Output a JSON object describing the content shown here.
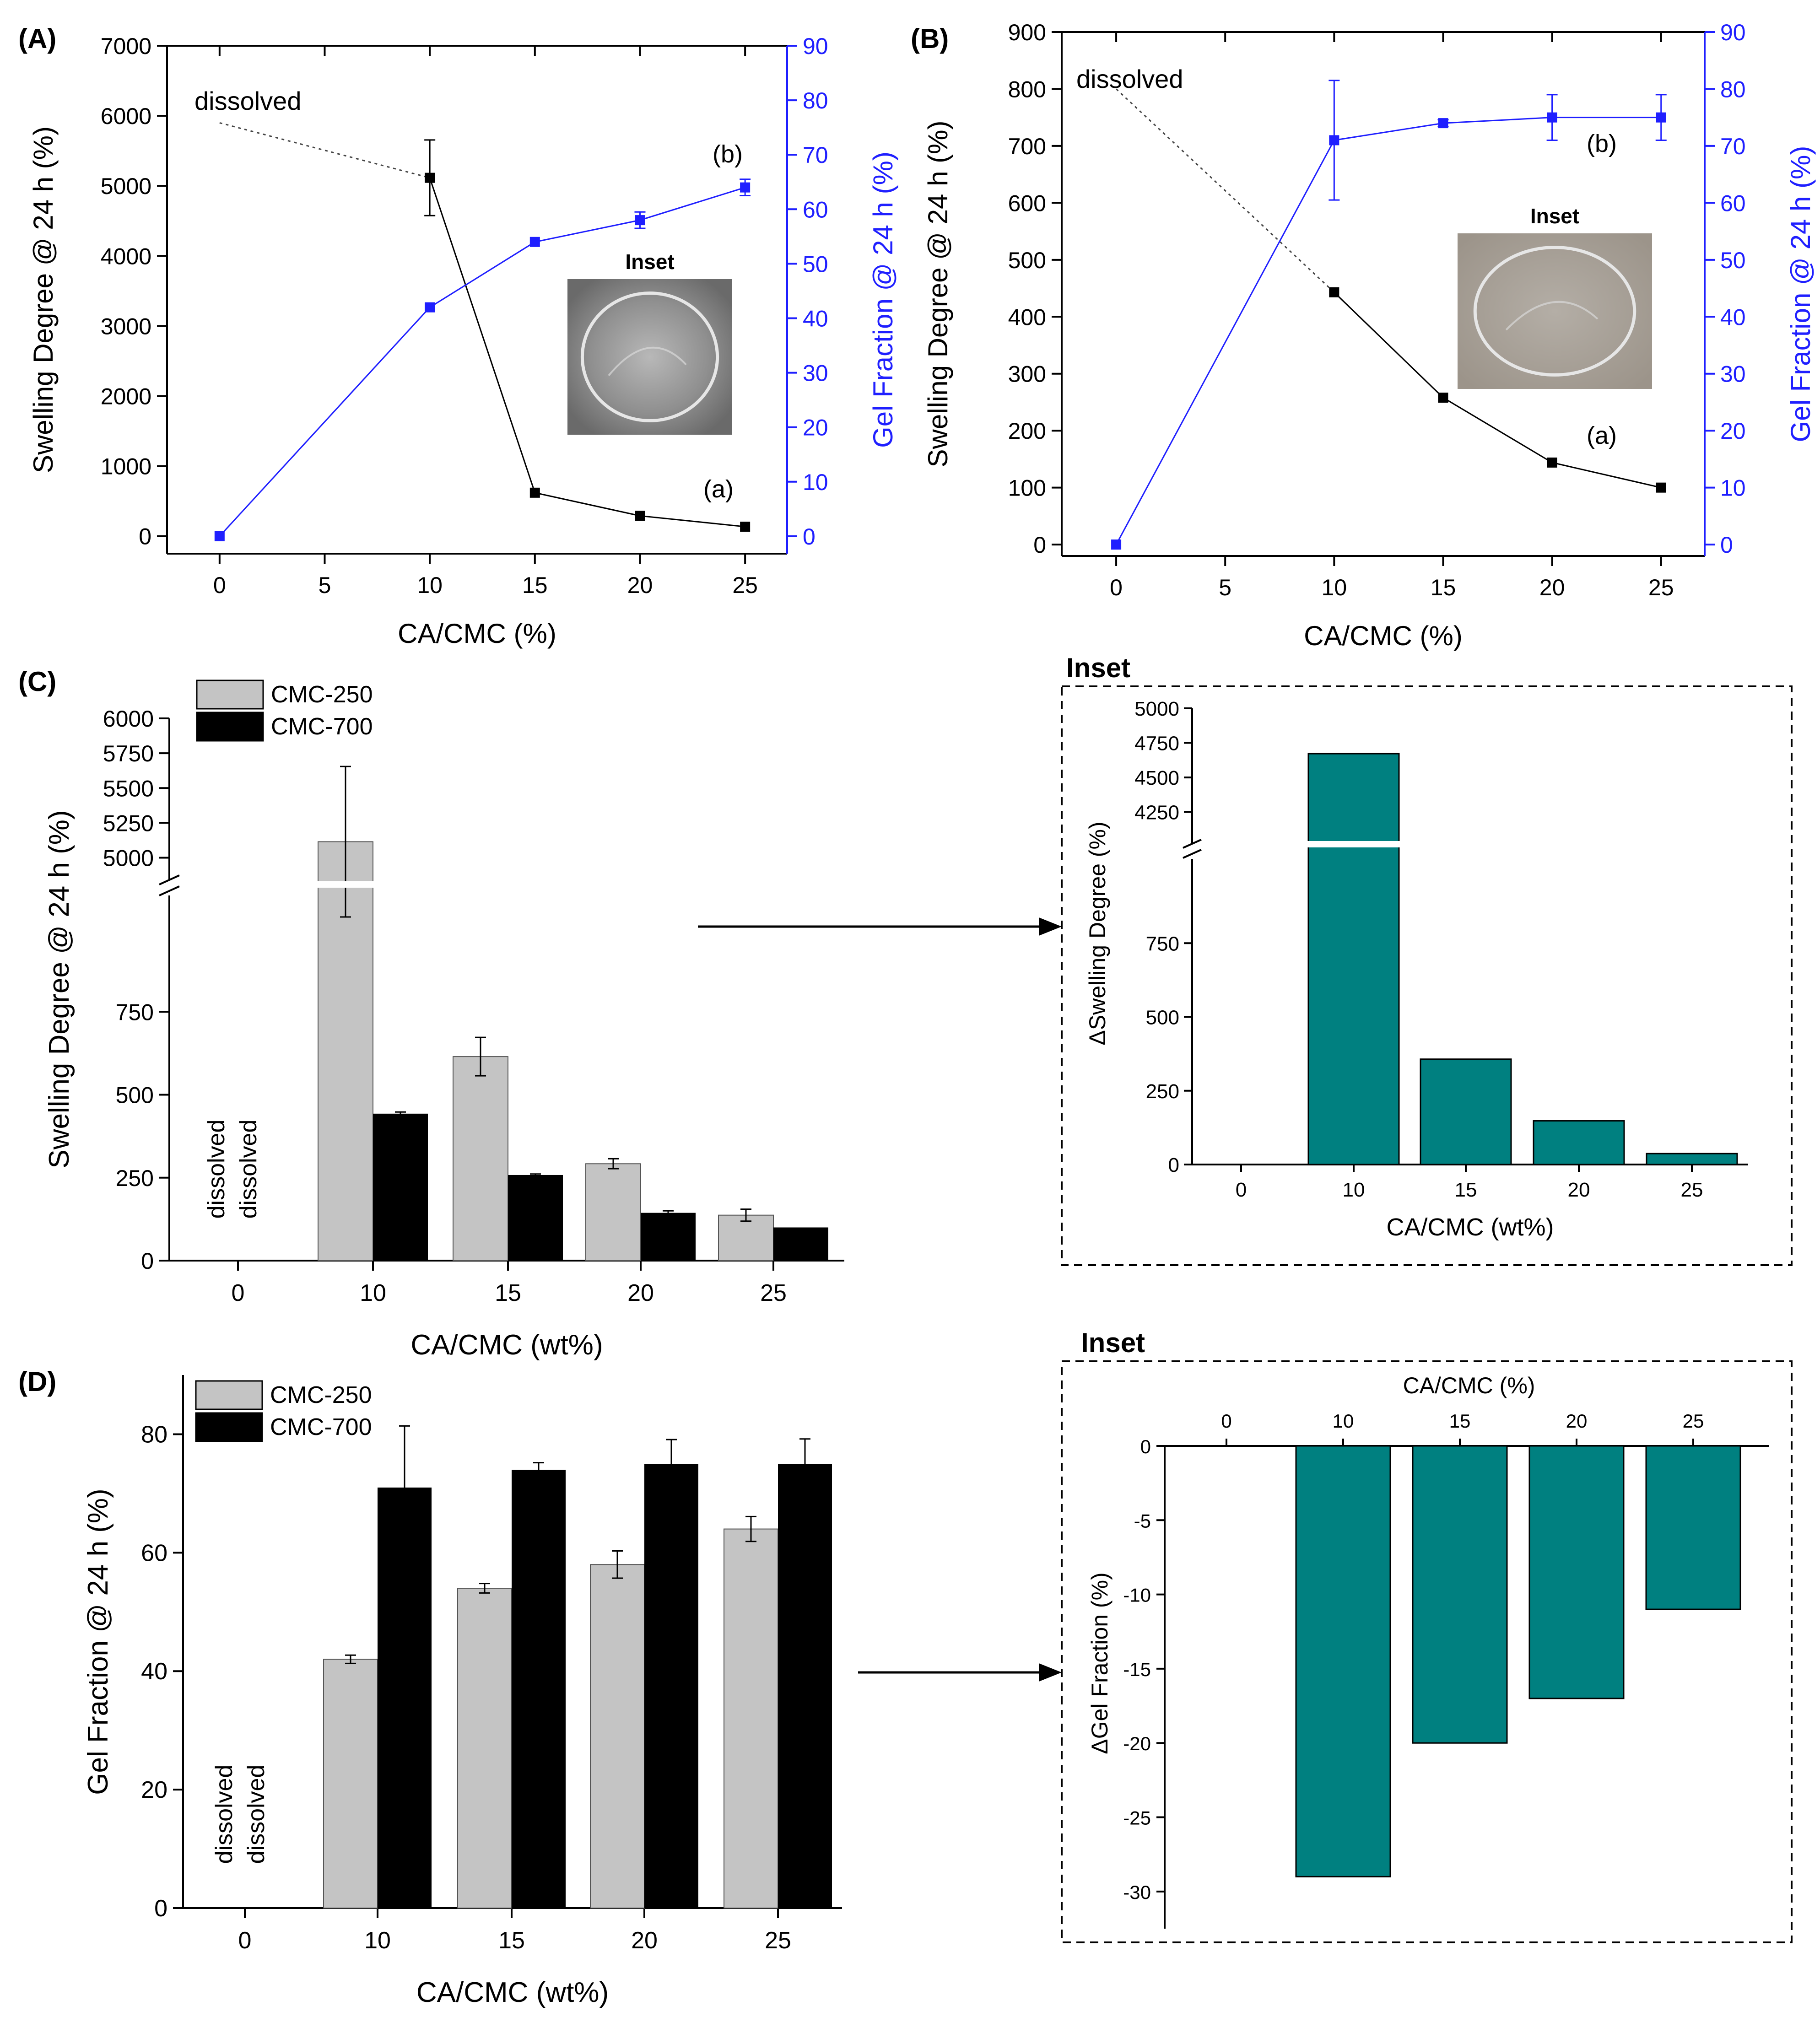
{
  "colors": {
    "black": "#000000",
    "blue": "#1f1fff",
    "gray_bar": "#c4c4c4",
    "teal": "#008080",
    "dotted": "#444444",
    "photo_a": "#8a8a8a",
    "photo_b": "#a49d94"
  },
  "chart_data": [
    {
      "id": "A",
      "type": "line",
      "panel_label": "(A)",
      "xlabel": "CA/CMC (%)",
      "ylabel_left": "Swelling Degree @ 24 h (%)",
      "ylabel_right": "Gel Fraction @ 24 h (%)",
      "x": [
        0,
        10,
        15,
        20,
        25
      ],
      "xticks": [
        0,
        5,
        10,
        15,
        20,
        25
      ],
      "xlim": [
        -2.5,
        27
      ],
      "ylim_left": [
        -250,
        7000
      ],
      "yticks_left": [
        0,
        1000,
        2000,
        3000,
        4000,
        5000,
        6000,
        7000
      ],
      "ylim_right": [
        -3.2,
        90
      ],
      "yticks_right": [
        0,
        10,
        20,
        30,
        40,
        50,
        60,
        70,
        80,
        90
      ],
      "series": [
        {
          "name": "(a)",
          "axis": "left",
          "color": "#000000",
          "x": [
            10,
            15,
            20,
            25
          ],
          "values": [
            5115,
            620,
            290,
            135
          ],
          "errors": [
            540,
            0,
            0,
            0
          ]
        },
        {
          "name": "(b)",
          "axis": "right",
          "color": "#1f1fff",
          "x": [
            0,
            10,
            15,
            20,
            25
          ],
          "values": [
            0,
            42,
            54,
            58,
            64
          ],
          "errors": [
            0,
            0,
            0,
            1.5,
            1.5
          ]
        }
      ],
      "annotations": {
        "dissolved": "dissolved",
        "series_a": "(a)",
        "series_b": "(b)",
        "inset": "Inset"
      }
    },
    {
      "id": "B",
      "type": "line",
      "panel_label": "(B)",
      "xlabel": "CA/CMC (%)",
      "ylabel_left": "Swelling Degree @ 24 h (%)",
      "ylabel_right": "Gel Fraction @ 24 h (%)",
      "x": [
        0,
        10,
        15,
        20,
        25
      ],
      "xticks": [
        0,
        5,
        10,
        15,
        20,
        25
      ],
      "xlim": [
        -2.5,
        27
      ],
      "ylim_left": [
        -20,
        900
      ],
      "yticks_left": [
        0,
        100,
        200,
        300,
        400,
        500,
        600,
        700,
        800,
        900
      ],
      "ylim_right": [
        -2,
        90
      ],
      "yticks_right": [
        0,
        10,
        20,
        30,
        40,
        50,
        60,
        70,
        80,
        90
      ],
      "series": [
        {
          "name": "(a)",
          "axis": "left",
          "color": "#000000",
          "x": [
            10,
            15,
            20,
            25
          ],
          "values": [
            443,
            258,
            144,
            100
          ],
          "errors": [
            0,
            0,
            0,
            0
          ]
        },
        {
          "name": "(b)",
          "axis": "right",
          "color": "#1f1fff",
          "x": [
            0,
            10,
            15,
            20,
            25
          ],
          "values": [
            0,
            71,
            74,
            75,
            75
          ],
          "errors": [
            0,
            10.5,
            0.6,
            4,
            4
          ]
        }
      ],
      "annotations": {
        "dissolved": "dissolved",
        "series_a": "(a)",
        "series_b": "(b)",
        "inset": "Inset"
      }
    },
    {
      "id": "C",
      "type": "bar",
      "panel_label": "(C)",
      "xlabel": "CA/CMC (wt%)",
      "ylabel": "Swelling Degree @ 24 h (%)",
      "categories": [
        "0",
        "10",
        "15",
        "20",
        "25"
      ],
      "upper_ylim": [
        4900,
        6000
      ],
      "upper_yticks": [
        5000,
        5250,
        5500,
        5750,
        6000
      ],
      "lower_ylim": [
        0,
        1000
      ],
      "lower_yticks": [
        0,
        250,
        500,
        750
      ],
      "series": [
        {
          "name": "CMC-250",
          "color": "#c4c4c4",
          "values": [
            null,
            5115,
            615,
            292,
            137
          ],
          "errors": [
            0,
            540,
            58,
            15,
            18
          ]
        },
        {
          "name": "CMC-700",
          "color": "#000000",
          "values": [
            null,
            443,
            258,
            144,
            100
          ],
          "errors": [
            0,
            5,
            3,
            6,
            0
          ]
        }
      ],
      "dissolved_labels": [
        "dissolved",
        "dissolved"
      ]
    },
    {
      "id": "C-inset",
      "type": "bar",
      "title": "Inset",
      "xlabel": "CA/CMC (wt%)",
      "ylabel": "ΔSwelling Degree (%)",
      "categories": [
        "0",
        "10",
        "15",
        "20",
        "25"
      ],
      "values": [
        0,
        4672,
        357,
        148,
        37
      ],
      "upper_ylim": [
        4100,
        5000
      ],
      "upper_yticks": [
        4250,
        4500,
        4750,
        5000
      ],
      "lower_ylim": [
        0,
        1000
      ],
      "lower_yticks": [
        0,
        250,
        500,
        750
      ],
      "color": "#008080"
    },
    {
      "id": "D",
      "type": "bar",
      "panel_label": "(D)",
      "xlabel": "CA/CMC (wt%)",
      "ylabel": "Gel Fraction @ 24 h (%)",
      "categories": [
        "0",
        "10",
        "15",
        "20",
        "25"
      ],
      "ylim": [
        0,
        90
      ],
      "yticks": [
        0,
        20,
        40,
        60,
        80
      ],
      "series": [
        {
          "name": "CMC-250",
          "color": "#c4c4c4",
          "values": [
            null,
            42,
            54,
            58,
            64
          ],
          "errors": [
            0,
            0.7,
            0.8,
            2.3,
            2.1
          ]
        },
        {
          "name": "CMC-700",
          "color": "#000000",
          "values": [
            null,
            71,
            74,
            75,
            75
          ],
          "errors": [
            0,
            10.4,
            1.2,
            4.1,
            4.2
          ]
        }
      ],
      "dissolved_labels": [
        "dissolved",
        "dissolved"
      ]
    },
    {
      "id": "D-inset",
      "type": "bar",
      "title": "Inset",
      "xlabel": "CA/CMC (%)",
      "ylabel": "ΔGel Fraction (%)",
      "categories": [
        "0",
        "10",
        "15",
        "20",
        "25"
      ],
      "values": [
        0,
        -29,
        -20,
        -17,
        -11
      ],
      "ylim": [
        -32.5,
        0
      ],
      "yticks": [
        0,
        -5,
        -10,
        -15,
        -20,
        -25,
        -30
      ],
      "color": "#008080"
    }
  ]
}
